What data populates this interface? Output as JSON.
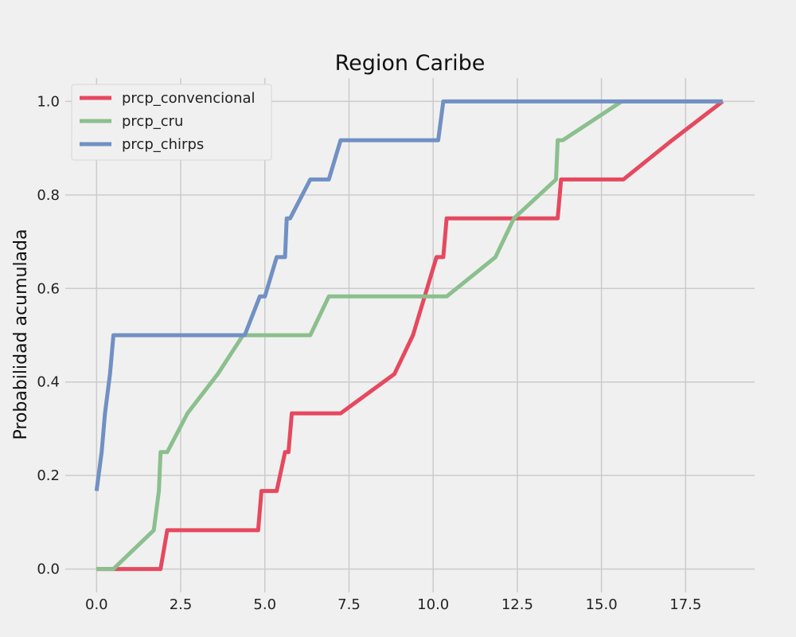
{
  "chart_data": {
    "type": "line",
    "title": "Region Caribe",
    "xlabel": "",
    "ylabel": "Probabilidad acumulada",
    "xlim": [
      -0.93,
      19.55
    ],
    "ylim": [
      -0.05,
      1.05
    ],
    "xticks": [
      "0.0",
      "2.5",
      "5.0",
      "7.5",
      "10.0",
      "12.5",
      "15.0",
      "17.5"
    ],
    "xtick_values": [
      0,
      2.5,
      5,
      7.5,
      10,
      12.5,
      15,
      17.5
    ],
    "yticks": [
      "0.0",
      "0.2",
      "0.4",
      "0.6",
      "0.8",
      "1.0"
    ],
    "ytick_values": [
      0,
      0.2,
      0.4,
      0.6,
      0.8,
      1.0
    ],
    "grid": true,
    "legend_position": "top-left",
    "background": "#f0f0f0",
    "series": [
      {
        "name": "prcp_convencional",
        "color": "#e5495f",
        "points": [
          [
            0,
            0
          ],
          [
            1.9,
            0
          ],
          [
            2.1,
            0.083
          ],
          [
            4.8,
            0.083
          ],
          [
            4.9,
            0.167
          ],
          [
            5.35,
            0.167
          ],
          [
            5.6,
            0.25
          ],
          [
            5.7,
            0.25
          ],
          [
            5.8,
            0.333
          ],
          [
            7.25,
            0.333
          ],
          [
            8.85,
            0.417
          ],
          [
            9.4,
            0.5
          ],
          [
            10.1,
            0.667
          ],
          [
            10.3,
            0.667
          ],
          [
            10.4,
            0.75
          ],
          [
            13.7,
            0.75
          ],
          [
            13.8,
            0.833
          ],
          [
            15.65,
            0.833
          ],
          [
            17.1,
            0.917
          ],
          [
            18.6,
            1.0
          ]
        ]
      },
      {
        "name": "prcp_cru",
        "color": "#8cbf8e",
        "points": [
          [
            0,
            0
          ],
          [
            0.5,
            0
          ],
          [
            1.7,
            0.083
          ],
          [
            1.85,
            0.167
          ],
          [
            1.9,
            0.25
          ],
          [
            2.1,
            0.25
          ],
          [
            2.7,
            0.333
          ],
          [
            3.6,
            0.417
          ],
          [
            4.35,
            0.5
          ],
          [
            6.35,
            0.5
          ],
          [
            6.9,
            0.583
          ],
          [
            10.4,
            0.583
          ],
          [
            11.85,
            0.667
          ],
          [
            12.4,
            0.75
          ],
          [
            13.65,
            0.833
          ],
          [
            13.7,
            0.917
          ],
          [
            13.85,
            0.917
          ],
          [
            15.6,
            1.0
          ],
          [
            18.6,
            1.0
          ]
        ]
      },
      {
        "name": "prcp_chirps",
        "color": "#7190c3",
        "points": [
          [
            0,
            0.167
          ],
          [
            0.15,
            0.25
          ],
          [
            0.25,
            0.333
          ],
          [
            0.4,
            0.417
          ],
          [
            0.5,
            0.5
          ],
          [
            4.4,
            0.5
          ],
          [
            4.85,
            0.583
          ],
          [
            5.0,
            0.583
          ],
          [
            5.35,
            0.667
          ],
          [
            5.6,
            0.667
          ],
          [
            5.65,
            0.75
          ],
          [
            5.75,
            0.75
          ],
          [
            6.35,
            0.833
          ],
          [
            6.9,
            0.833
          ],
          [
            7.25,
            0.917
          ],
          [
            10.15,
            0.917
          ],
          [
            10.3,
            1.0
          ],
          [
            18.6,
            1.0
          ]
        ]
      }
    ]
  }
}
